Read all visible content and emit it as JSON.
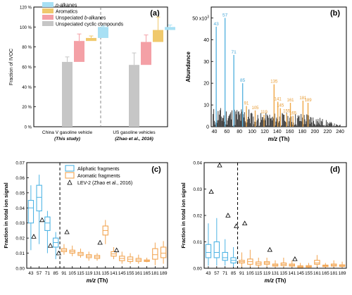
{
  "chart_data": [
    {
      "panel": "(a)",
      "type": "bar",
      "ylabel": "Fraction of IVOC",
      "ylim": [
        0,
        120
      ],
      "yticks": [
        "0 %",
        "20 %",
        "40 %",
        "60 %",
        "80 %",
        "100 %",
        "120 %"
      ],
      "groups": [
        {
          "label": "China V gasoline vehicle",
          "sublabel": "(This study)"
        },
        {
          "label": "US gasoline vehicles",
          "sublabel": "(Zhao et al., 2016)"
        }
      ],
      "legend": [
        {
          "name": "n-alkanes",
          "prefix": "n",
          "rest": "-alkanes",
          "color": "#a8e0f4"
        },
        {
          "name": "Aromatics",
          "color": "#f0c96c"
        },
        {
          "name": "Unspeciated b-alkanes",
          "prefix_text": "Unspeciated ",
          "prefix": "b",
          "rest": "-alkanes",
          "color": "#f4a0a6"
        },
        {
          "name": "Unspeciated cyclic compounds",
          "color": "#c6c6c6"
        }
      ],
      "series": [
        {
          "name": "Unspeciated cyclic compounds",
          "color": "#c6c6c6",
          "low": [
            0,
            0
          ],
          "high": [
            65,
            62
          ],
          "err": [
            5,
            12
          ]
        },
        {
          "name": "Unspeciated b-alkanes",
          "color": "#f4a0a6",
          "low": [
            65,
            62
          ],
          "high": [
            86,
            85
          ],
          "err": [
            7,
            7
          ]
        },
        {
          "name": "Aromatics",
          "color": "#f0c96c",
          "low": [
            86,
            85
          ],
          "high": [
            89,
            97
          ],
          "err": [
            2,
            13
          ]
        },
        {
          "name": "n-alkanes",
          "color": "#a8e0f4",
          "low": [
            89,
            97
          ],
          "high": [
            100,
            100
          ],
          "err": [
            1,
            2
          ]
        }
      ]
    },
    {
      "panel": "(b)",
      "type": "bar",
      "xlabel": "m/z (Th)",
      "ylabel": "Abundance",
      "ymax_label": "50 x10",
      "ymax_exp": "3",
      "xlim": [
        35,
        250
      ],
      "ylim": [
        0,
        55000
      ],
      "xticks": [
        "40",
        "60",
        "80",
        "100",
        "120",
        "140",
        "160",
        "180",
        "200",
        "220",
        "240"
      ],
      "yticks": [
        "0",
        "10",
        "20",
        "30",
        "40",
        "50"
      ],
      "peaks_blue": [
        {
          "mz": 43,
          "value": 46000,
          "label": "43"
        },
        {
          "mz": 57,
          "value": 50000,
          "label": "57"
        },
        {
          "mz": 71,
          "value": 33000,
          "label": "71"
        },
        {
          "mz": 85,
          "value": 20000,
          "label": "85"
        }
      ],
      "peaks_orange": [
        {
          "mz": 91,
          "value": 9500,
          "label": "91"
        },
        {
          "mz": 105,
          "value": 7500,
          "label": "105"
        },
        {
          "mz": 119,
          "value": 5500,
          "label": "119"
        },
        {
          "mz": 135,
          "value": 19500,
          "label": "135"
        },
        {
          "mz": 141,
          "value": 11500,
          "label": "141"
        },
        {
          "mz": 145,
          "value": 8500,
          "label": "145"
        },
        {
          "mz": 155,
          "value": 6000,
          "label": "155"
        },
        {
          "mz": 161,
          "value": 11000,
          "label": "161"
        },
        {
          "mz": 165,
          "value": 5000,
          "label": "165"
        },
        {
          "mz": 181,
          "value": 12000,
          "label": "181"
        },
        {
          "mz": 189,
          "value": 11000,
          "label": "189"
        }
      ]
    },
    {
      "panel": "(c)",
      "type": "box",
      "xlabel": "m/z (Th)",
      "ylabel": "Fraction in total ion signal",
      "ylim": [
        0,
        0.07
      ],
      "yticks": [
        "0.00",
        "0.01",
        "0.02",
        "0.03",
        "0.04",
        "0.05",
        "0.06",
        "0.07"
      ],
      "categories": [
        "43",
        "57",
        "71",
        "85",
        "91",
        "105",
        "115",
        "119",
        "131",
        "135",
        "141",
        "145",
        "155",
        "161",
        "165",
        "181",
        "189"
      ],
      "legend": [
        {
          "name": "Aliphatic fragments",
          "color": "#4fb4e4"
        },
        {
          "name": "Aromatic fragments",
          "color": "#f2a552"
        },
        {
          "name": "LEV-2 (Zhao et al., 2016)",
          "marker": "triangle"
        }
      ],
      "boxes": [
        {
          "q1": 0.03,
          "median": 0.04,
          "q3": 0.045,
          "wlo": 0.012,
          "whi": 0.055,
          "group": "aliphatic"
        },
        {
          "q1": 0.038,
          "median": 0.047,
          "q3": 0.055,
          "wlo": 0.016,
          "whi": 0.062,
          "group": "aliphatic"
        },
        {
          "q1": 0.025,
          "median": 0.03,
          "q3": 0.034,
          "wlo": 0.01,
          "whi": 0.038,
          "group": "aliphatic"
        },
        {
          "q1": 0.014,
          "median": 0.017,
          "q3": 0.02,
          "wlo": 0.006,
          "whi": 0.024,
          "group": "aliphatic"
        },
        {
          "q1": 0.011,
          "median": 0.012,
          "q3": 0.013,
          "wlo": 0.009,
          "whi": 0.016,
          "group": "aromatic"
        },
        {
          "q1": 0.01,
          "median": 0.011,
          "q3": 0.012,
          "wlo": 0.008,
          "whi": 0.015,
          "group": "aromatic"
        },
        {
          "q1": 0.0085,
          "median": 0.0095,
          "q3": 0.0105,
          "wlo": 0.007,
          "whi": 0.013,
          "group": "aromatic"
        },
        {
          "q1": 0.007,
          "median": 0.008,
          "q3": 0.009,
          "wlo": 0.005,
          "whi": 0.011,
          "group": "aromatic"
        },
        {
          "q1": 0.0065,
          "median": 0.0075,
          "q3": 0.0085,
          "wlo": 0.005,
          "whi": 0.01,
          "group": "aromatic"
        },
        {
          "q1": 0.022,
          "median": 0.025,
          "q3": 0.028,
          "wlo": 0.016,
          "whi": 0.032,
          "group": "aromatic"
        },
        {
          "q1": 0.008,
          "median": 0.0095,
          "q3": 0.011,
          "wlo": 0.006,
          "whi": 0.014,
          "group": "aromatic"
        },
        {
          "q1": 0.005,
          "median": 0.0065,
          "q3": 0.008,
          "wlo": 0.003,
          "whi": 0.011,
          "group": "aromatic"
        },
        {
          "q1": 0.0045,
          "median": 0.006,
          "q3": 0.0075,
          "wlo": 0.003,
          "whi": 0.01,
          "group": "aromatic"
        },
        {
          "q1": 0.0045,
          "median": 0.0055,
          "q3": 0.0065,
          "wlo": 0.003,
          "whi": 0.009,
          "group": "aromatic"
        },
        {
          "q1": 0.0045,
          "median": 0.005,
          "q3": 0.0055,
          "wlo": 0.004,
          "whi": 0.007,
          "group": "aromatic"
        },
        {
          "q1": 0.006,
          "median": 0.009,
          "q3": 0.013,
          "wlo": 0.002,
          "whi": 0.017,
          "group": "aromatic"
        },
        {
          "q1": 0.007,
          "median": 0.01,
          "q3": 0.014,
          "wlo": 0.003,
          "whi": 0.018,
          "group": "aromatic"
        }
      ],
      "lev2": [
        {
          "cat": "43",
          "value": 0.021
        },
        {
          "cat": "57",
          "value": 0.032
        },
        {
          "cat": "71",
          "value": 0.015
        },
        {
          "cat": "85",
          "value": 0.01
        },
        {
          "cat": "91",
          "value": 0.024
        },
        {
          "cat": "131",
          "value": 0.017
        },
        {
          "cat": "141",
          "value": 0.012
        }
      ]
    },
    {
      "panel": "(d)",
      "type": "box",
      "xlabel": "m/z (Th)",
      "ylabel": "Fraction in total ion signal",
      "ylim": [
        0,
        0.04
      ],
      "yticks": [
        "0.00",
        "0.01",
        "0.02",
        "0.03",
        "0.04"
      ],
      "categories": [
        "43",
        "57",
        "71",
        "85",
        "91",
        "105",
        "115",
        "119",
        "131",
        "135",
        "141",
        "145",
        "155",
        "161",
        "165",
        "181",
        "189"
      ],
      "boxes": [
        {
          "q1": 0.004,
          "median": 0.006,
          "q3": 0.009,
          "wlo": 0.001,
          "whi": 0.017,
          "group": "aliphatic"
        },
        {
          "q1": 0.004,
          "median": 0.006,
          "q3": 0.01,
          "wlo": 0.001,
          "whi": 0.019,
          "group": "aliphatic"
        },
        {
          "q1": 0.003,
          "median": 0.004,
          "q3": 0.006,
          "wlo": 0.001,
          "whi": 0.011,
          "group": "aliphatic"
        },
        {
          "q1": 0.002,
          "median": 0.003,
          "q3": 0.004,
          "wlo": 0.0005,
          "whi": 0.008,
          "group": "aliphatic"
        },
        {
          "q1": 0.002,
          "median": 0.0025,
          "q3": 0.003,
          "wlo": 0.0005,
          "whi": 0.006,
          "group": "aromatic"
        },
        {
          "q1": 0.0015,
          "median": 0.0025,
          "q3": 0.0035,
          "wlo": 0.0005,
          "whi": 0.007,
          "group": "aromatic"
        },
        {
          "q1": 0.0012,
          "median": 0.0018,
          "q3": 0.0024,
          "wlo": 0.0003,
          "whi": 0.004,
          "group": "aromatic"
        },
        {
          "q1": 0.0015,
          "median": 0.002,
          "q3": 0.0025,
          "wlo": 0.0005,
          "whi": 0.004,
          "group": "aromatic"
        },
        {
          "q1": 0.0008,
          "median": 0.0012,
          "q3": 0.0016,
          "wlo": 0.0003,
          "whi": 0.003,
          "group": "aromatic"
        },
        {
          "q1": 0.001,
          "median": 0.0015,
          "q3": 0.002,
          "wlo": 0.0003,
          "whi": 0.004,
          "group": "aromatic"
        },
        {
          "q1": 0.0008,
          "median": 0.0012,
          "q3": 0.0016,
          "wlo": 0.0003,
          "whi": 0.003,
          "group": "aromatic"
        },
        {
          "q1": 0.0003,
          "median": 0.0006,
          "q3": 0.0009,
          "wlo": 0.0001,
          "whi": 0.002,
          "group": "aromatic"
        },
        {
          "q1": 0.0004,
          "median": 0.0007,
          "q3": 0.001,
          "wlo": 0.0001,
          "whi": 0.002,
          "group": "aromatic"
        },
        {
          "q1": 0.0015,
          "median": 0.002,
          "q3": 0.003,
          "wlo": 0.0005,
          "whi": 0.005,
          "group": "aromatic"
        },
        {
          "q1": 0.0006,
          "median": 0.0009,
          "q3": 0.0012,
          "wlo": 0.0002,
          "whi": 0.002,
          "group": "aromatic"
        },
        {
          "q1": 0.0008,
          "median": 0.0012,
          "q3": 0.0016,
          "wlo": 0.0003,
          "whi": 0.003,
          "group": "aromatic"
        },
        {
          "q1": 0.0007,
          "median": 0.001,
          "q3": 0.0013,
          "wlo": 0.0002,
          "whi": 0.0025,
          "group": "aromatic"
        }
      ],
      "lev2": [
        {
          "cat": "43",
          "value": 0.029
        },
        {
          "cat": "57",
          "value": 0.039
        },
        {
          "cat": "71",
          "value": 0.02
        },
        {
          "cat": "85",
          "value": 0.016
        },
        {
          "cat": "91",
          "value": 0.017
        },
        {
          "cat": "119",
          "value": 0.007
        },
        {
          "cat": "141",
          "value": 0.0035
        }
      ]
    }
  ]
}
